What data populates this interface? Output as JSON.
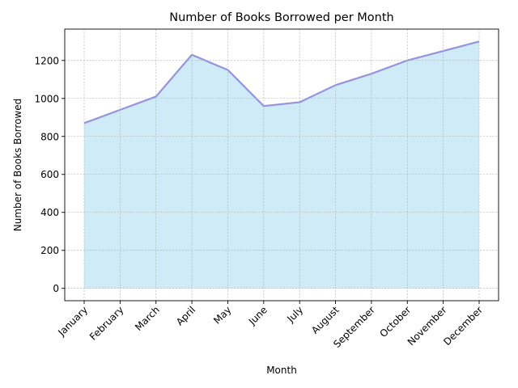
{
  "chart_data": {
    "type": "area",
    "title": "Number of Books Borrowed per Month",
    "xlabel": "Month",
    "ylabel": "Number of Books Borrowed",
    "categories": [
      "January",
      "February",
      "March",
      "April",
      "May",
      "June",
      "July",
      "August",
      "September",
      "October",
      "November",
      "December"
    ],
    "series": [
      {
        "values": [
          870,
          940,
          1010,
          1230,
          1150,
          960,
          980,
          1070,
          1130,
          1200,
          1250,
          1300
        ]
      }
    ],
    "yticks": [
      0,
      200,
      400,
      600,
      800,
      1000,
      1200
    ],
    "ylim": [
      -65,
      1365
    ],
    "grid": true,
    "legend": "none",
    "colors": {
      "fill": "#87CEEB",
      "fill_opacity": 0.4,
      "line": "#9493E0",
      "grid": "#b0b0b0"
    }
  }
}
